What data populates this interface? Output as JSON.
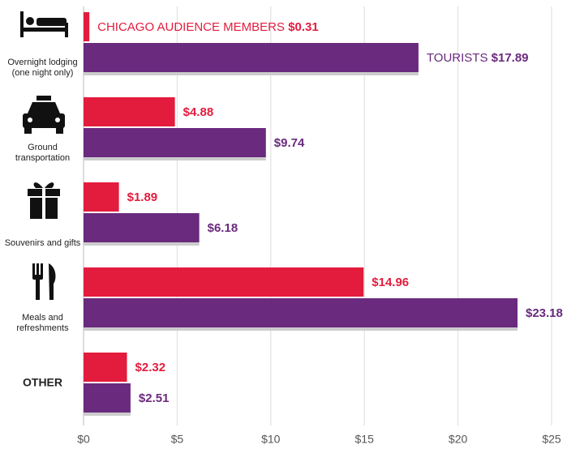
{
  "chart_data": {
    "type": "bar",
    "orientation": "horizontal",
    "categories": [
      "Overnight lodging (one night only)",
      "Ground transportation",
      "Souvenirs and gifts",
      "Meals and refreshments",
      "OTHER"
    ],
    "series": [
      {
        "name": "CHICAGO AUDIENCE MEMBERS",
        "color": "#e31c3d",
        "values": [
          0.31,
          4.88,
          1.89,
          14.96,
          2.32
        ],
        "value_labels": [
          "$0.31",
          "$4.88",
          "$1.89",
          "$14.96",
          "$2.32"
        ]
      },
      {
        "name": "TOURISTS",
        "color": "#6a2a7e",
        "values": [
          17.89,
          9.74,
          6.18,
          23.18,
          2.51
        ],
        "value_labels": [
          "$17.89",
          "$9.74",
          "$6.18",
          "$23.18",
          "$2.51"
        ]
      }
    ],
    "xlim": [
      0,
      25
    ],
    "xticks": [
      {
        "value": 0,
        "label": "$0"
      },
      {
        "value": 5,
        "label": "$5"
      },
      {
        "value": 10,
        "label": "$10"
      },
      {
        "value": 15,
        "label": "$15"
      },
      {
        "value": 20,
        "label": "$20"
      },
      {
        "value": 25,
        "label": "$25"
      }
    ],
    "grid": true
  }
}
